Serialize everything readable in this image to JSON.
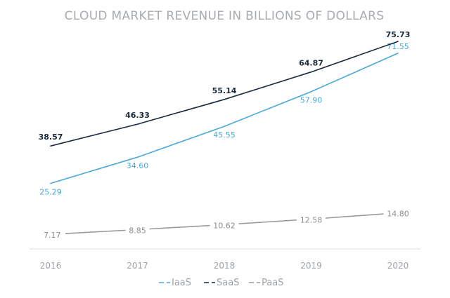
{
  "chart_data": {
    "type": "line",
    "title": "CLOUD MARKET REVENUE IN BILLIONS OF DOLLARS",
    "xlabel": "",
    "ylabel": "",
    "categories": [
      "2016",
      "2017",
      "2018",
      "2019",
      "2020"
    ],
    "series": [
      {
        "name": "IaaS",
        "color": "#4aa8d8",
        "values": [
          25.29,
          34.6,
          45.55,
          57.9,
          71.55
        ],
        "labels": [
          "25.29",
          "34.60",
          "45.55",
          "57.90",
          "71.55"
        ]
      },
      {
        "name": "SaaS",
        "color": "#1b2a3a",
        "values": [
          38.57,
          46.33,
          55.14,
          64.87,
          75.73
        ],
        "labels": [
          "38.57",
          "46.33",
          "55.14",
          "64.87",
          "75.73"
        ]
      },
      {
        "name": "PaaS",
        "color": "#9a9a9a",
        "values": [
          7.17,
          8.85,
          10.62,
          12.58,
          14.8
        ],
        "labels": [
          "7.17",
          "8.85",
          "10.62",
          "12.58",
          "14.80"
        ]
      }
    ],
    "ylim": [
      0,
      80
    ],
    "grid": false,
    "legend_position": "bottom-center",
    "baseline_color": "#dcdcdc"
  }
}
